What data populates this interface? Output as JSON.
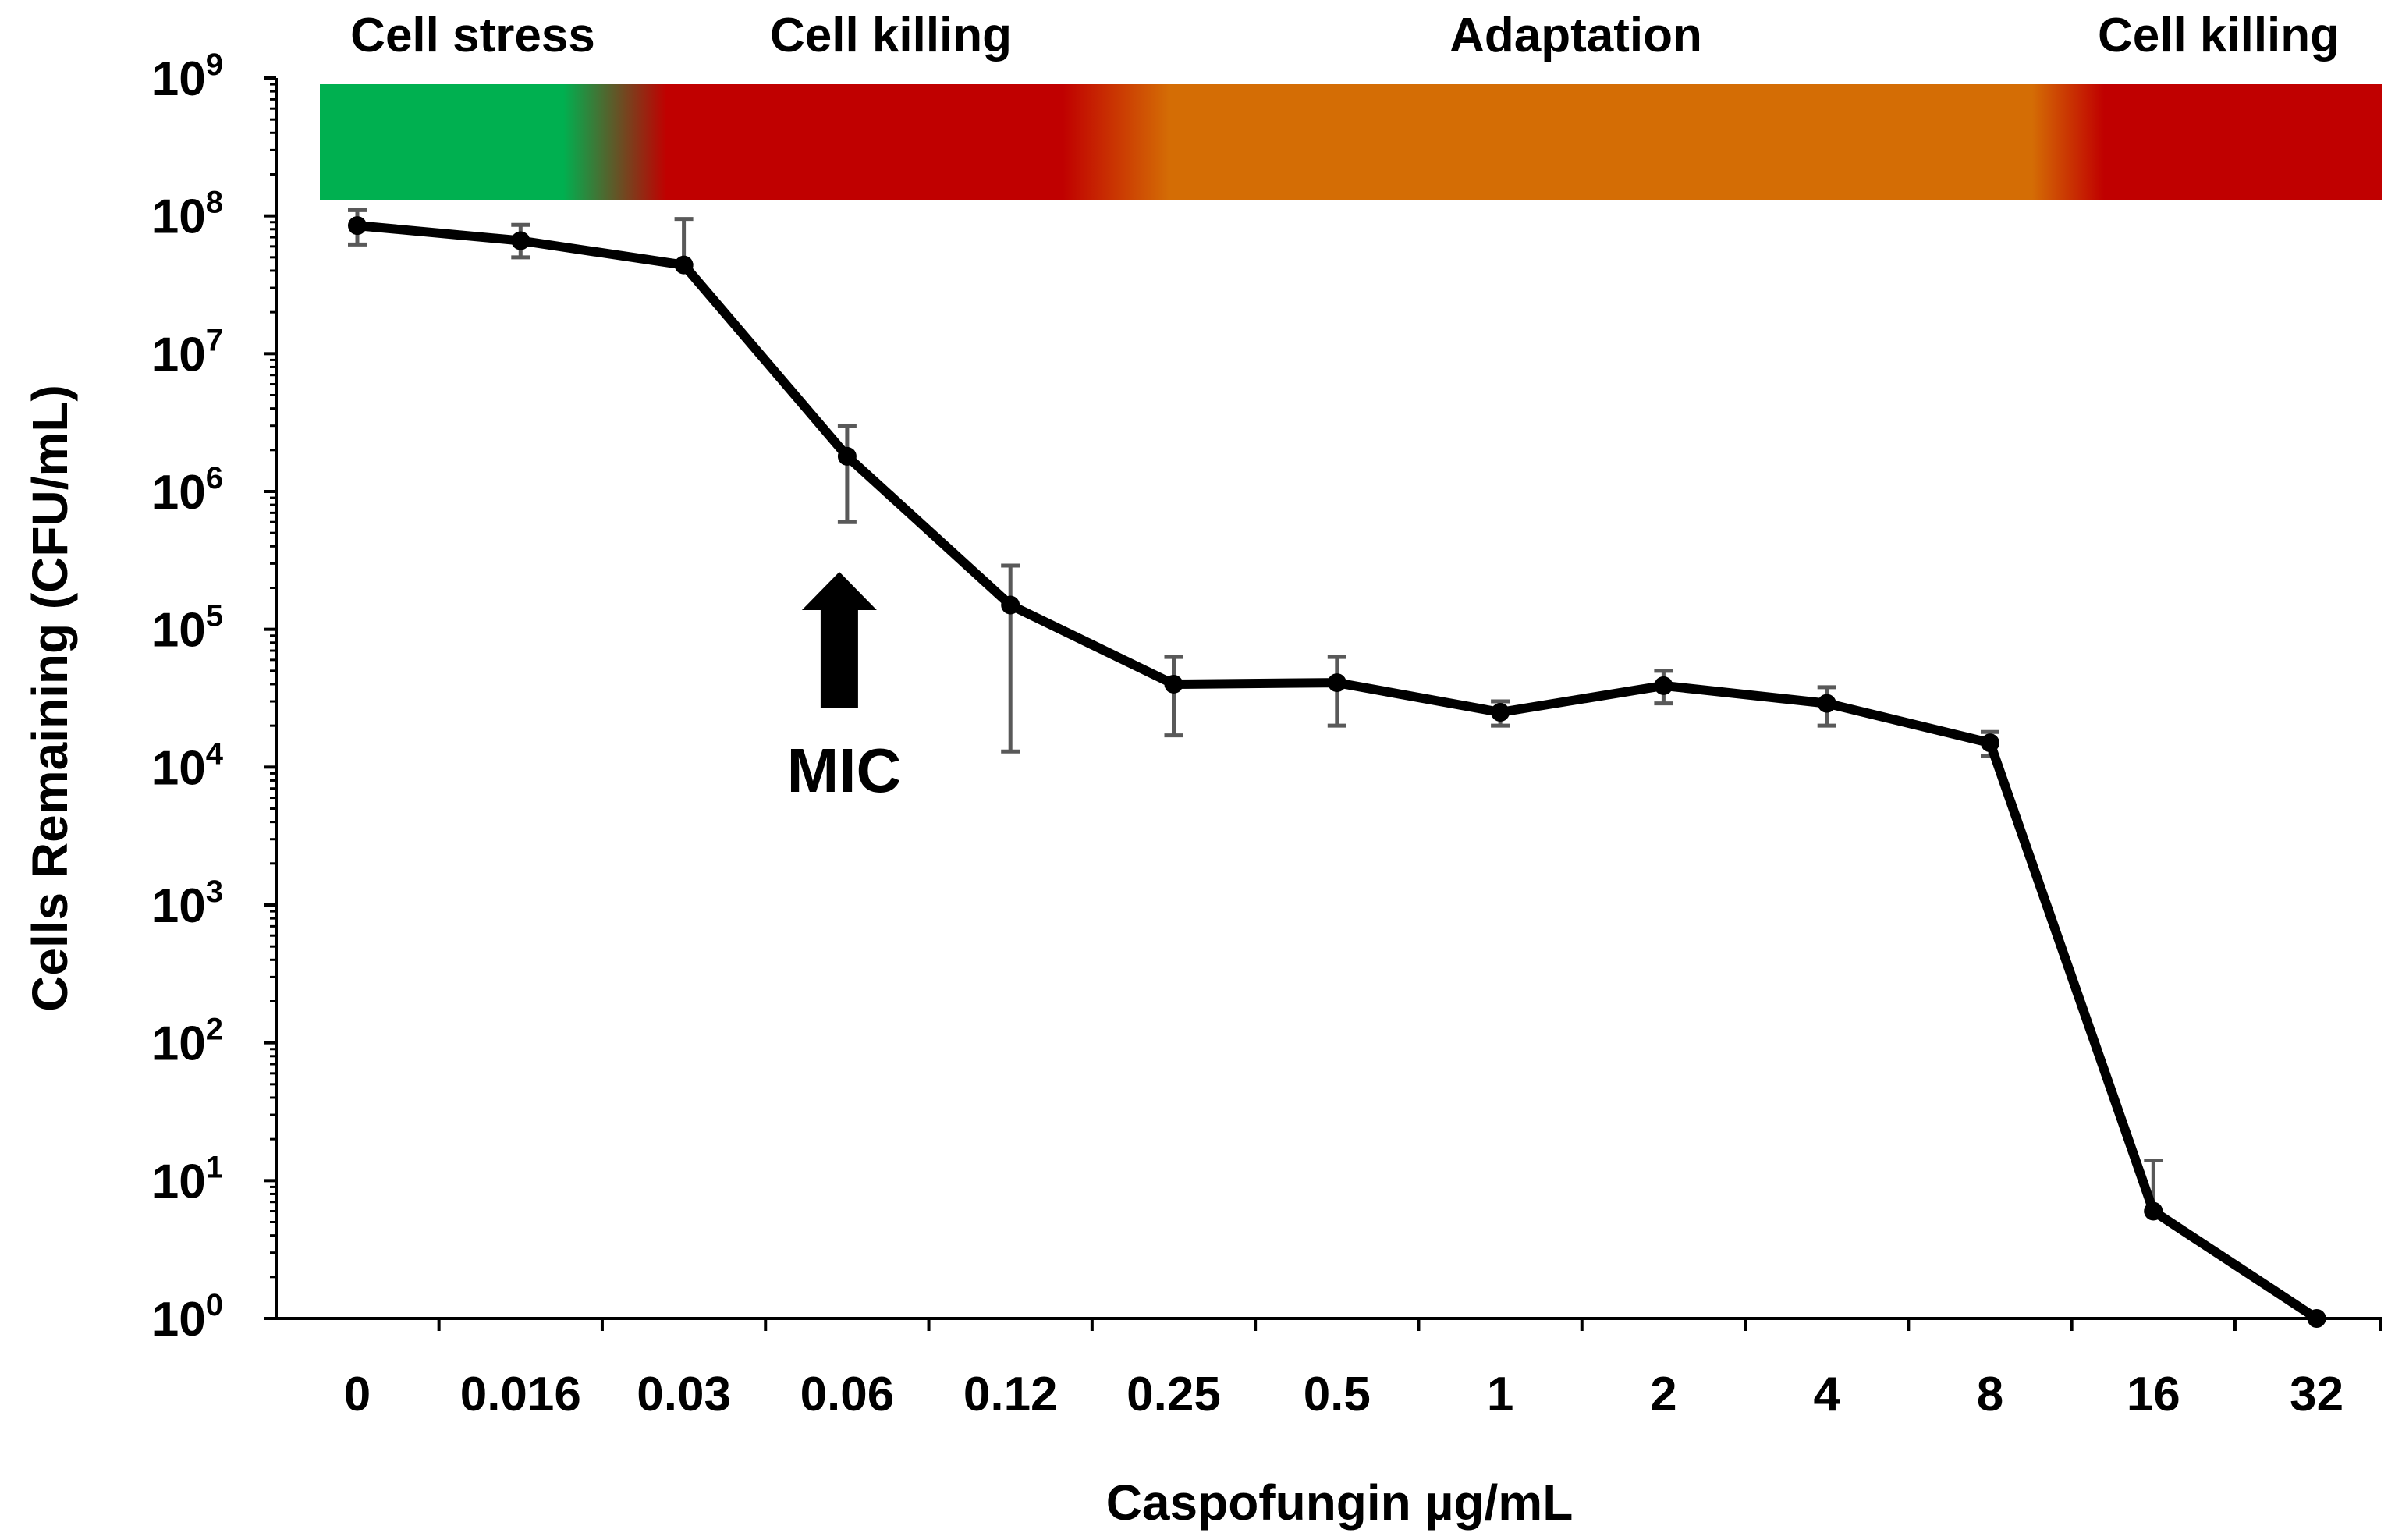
{
  "chart_data": {
    "type": "line",
    "title": "",
    "xlabel": "Caspofungin µg/mL",
    "ylabel": "Cells Remaining (CFU/mL)",
    "yscale": "log",
    "ylim": [
      1,
      1000000000
    ],
    "y_ticks": [
      {
        "base": "10",
        "exp": "0"
      },
      {
        "base": "10",
        "exp": "1"
      },
      {
        "base": "10",
        "exp": "2"
      },
      {
        "base": "10",
        "exp": "3"
      },
      {
        "base": "10",
        "exp": "4"
      },
      {
        "base": "10",
        "exp": "5"
      },
      {
        "base": "10",
        "exp": "6"
      },
      {
        "base": "10",
        "exp": "7"
      },
      {
        "base": "10",
        "exp": "8"
      },
      {
        "base": "10",
        "exp": "9"
      }
    ],
    "categories": [
      "0",
      "0.016",
      "0.03",
      "0.06",
      "0.12",
      "0.25",
      "0.5",
      "1",
      "2",
      "4",
      "8",
      "16",
      "32"
    ],
    "series": [
      {
        "name": "CFU/mL",
        "color": "#000000",
        "values": [
          85000000,
          66000000,
          44000000,
          1800000,
          150000,
          40000,
          41000,
          25000,
          39000,
          29000,
          15000,
          6,
          1
        ],
        "err_low": [
          62000000,
          50000000,
          44000000,
          600000,
          13000,
          17000,
          20000,
          20000,
          29000,
          20000,
          12000,
          6,
          1
        ],
        "err_high": [
          110000000,
          86000000,
          95000000,
          3000000,
          290000,
          63000,
          63000,
          30000,
          50000,
          38000,
          18000,
          14,
          1
        ]
      }
    ],
    "phases": [
      {
        "label": "Cell stress",
        "color": "#00b050"
      },
      {
        "label": "Cell killing",
        "color": "#c00000"
      },
      {
        "label": "Adaptation",
        "color": "#d46d05"
      },
      {
        "label": "Cell killing",
        "color": "#c00000"
      }
    ],
    "annotation": {
      "label": "MIC",
      "category": "0.06"
    },
    "errorbar_color": "#595959"
  }
}
